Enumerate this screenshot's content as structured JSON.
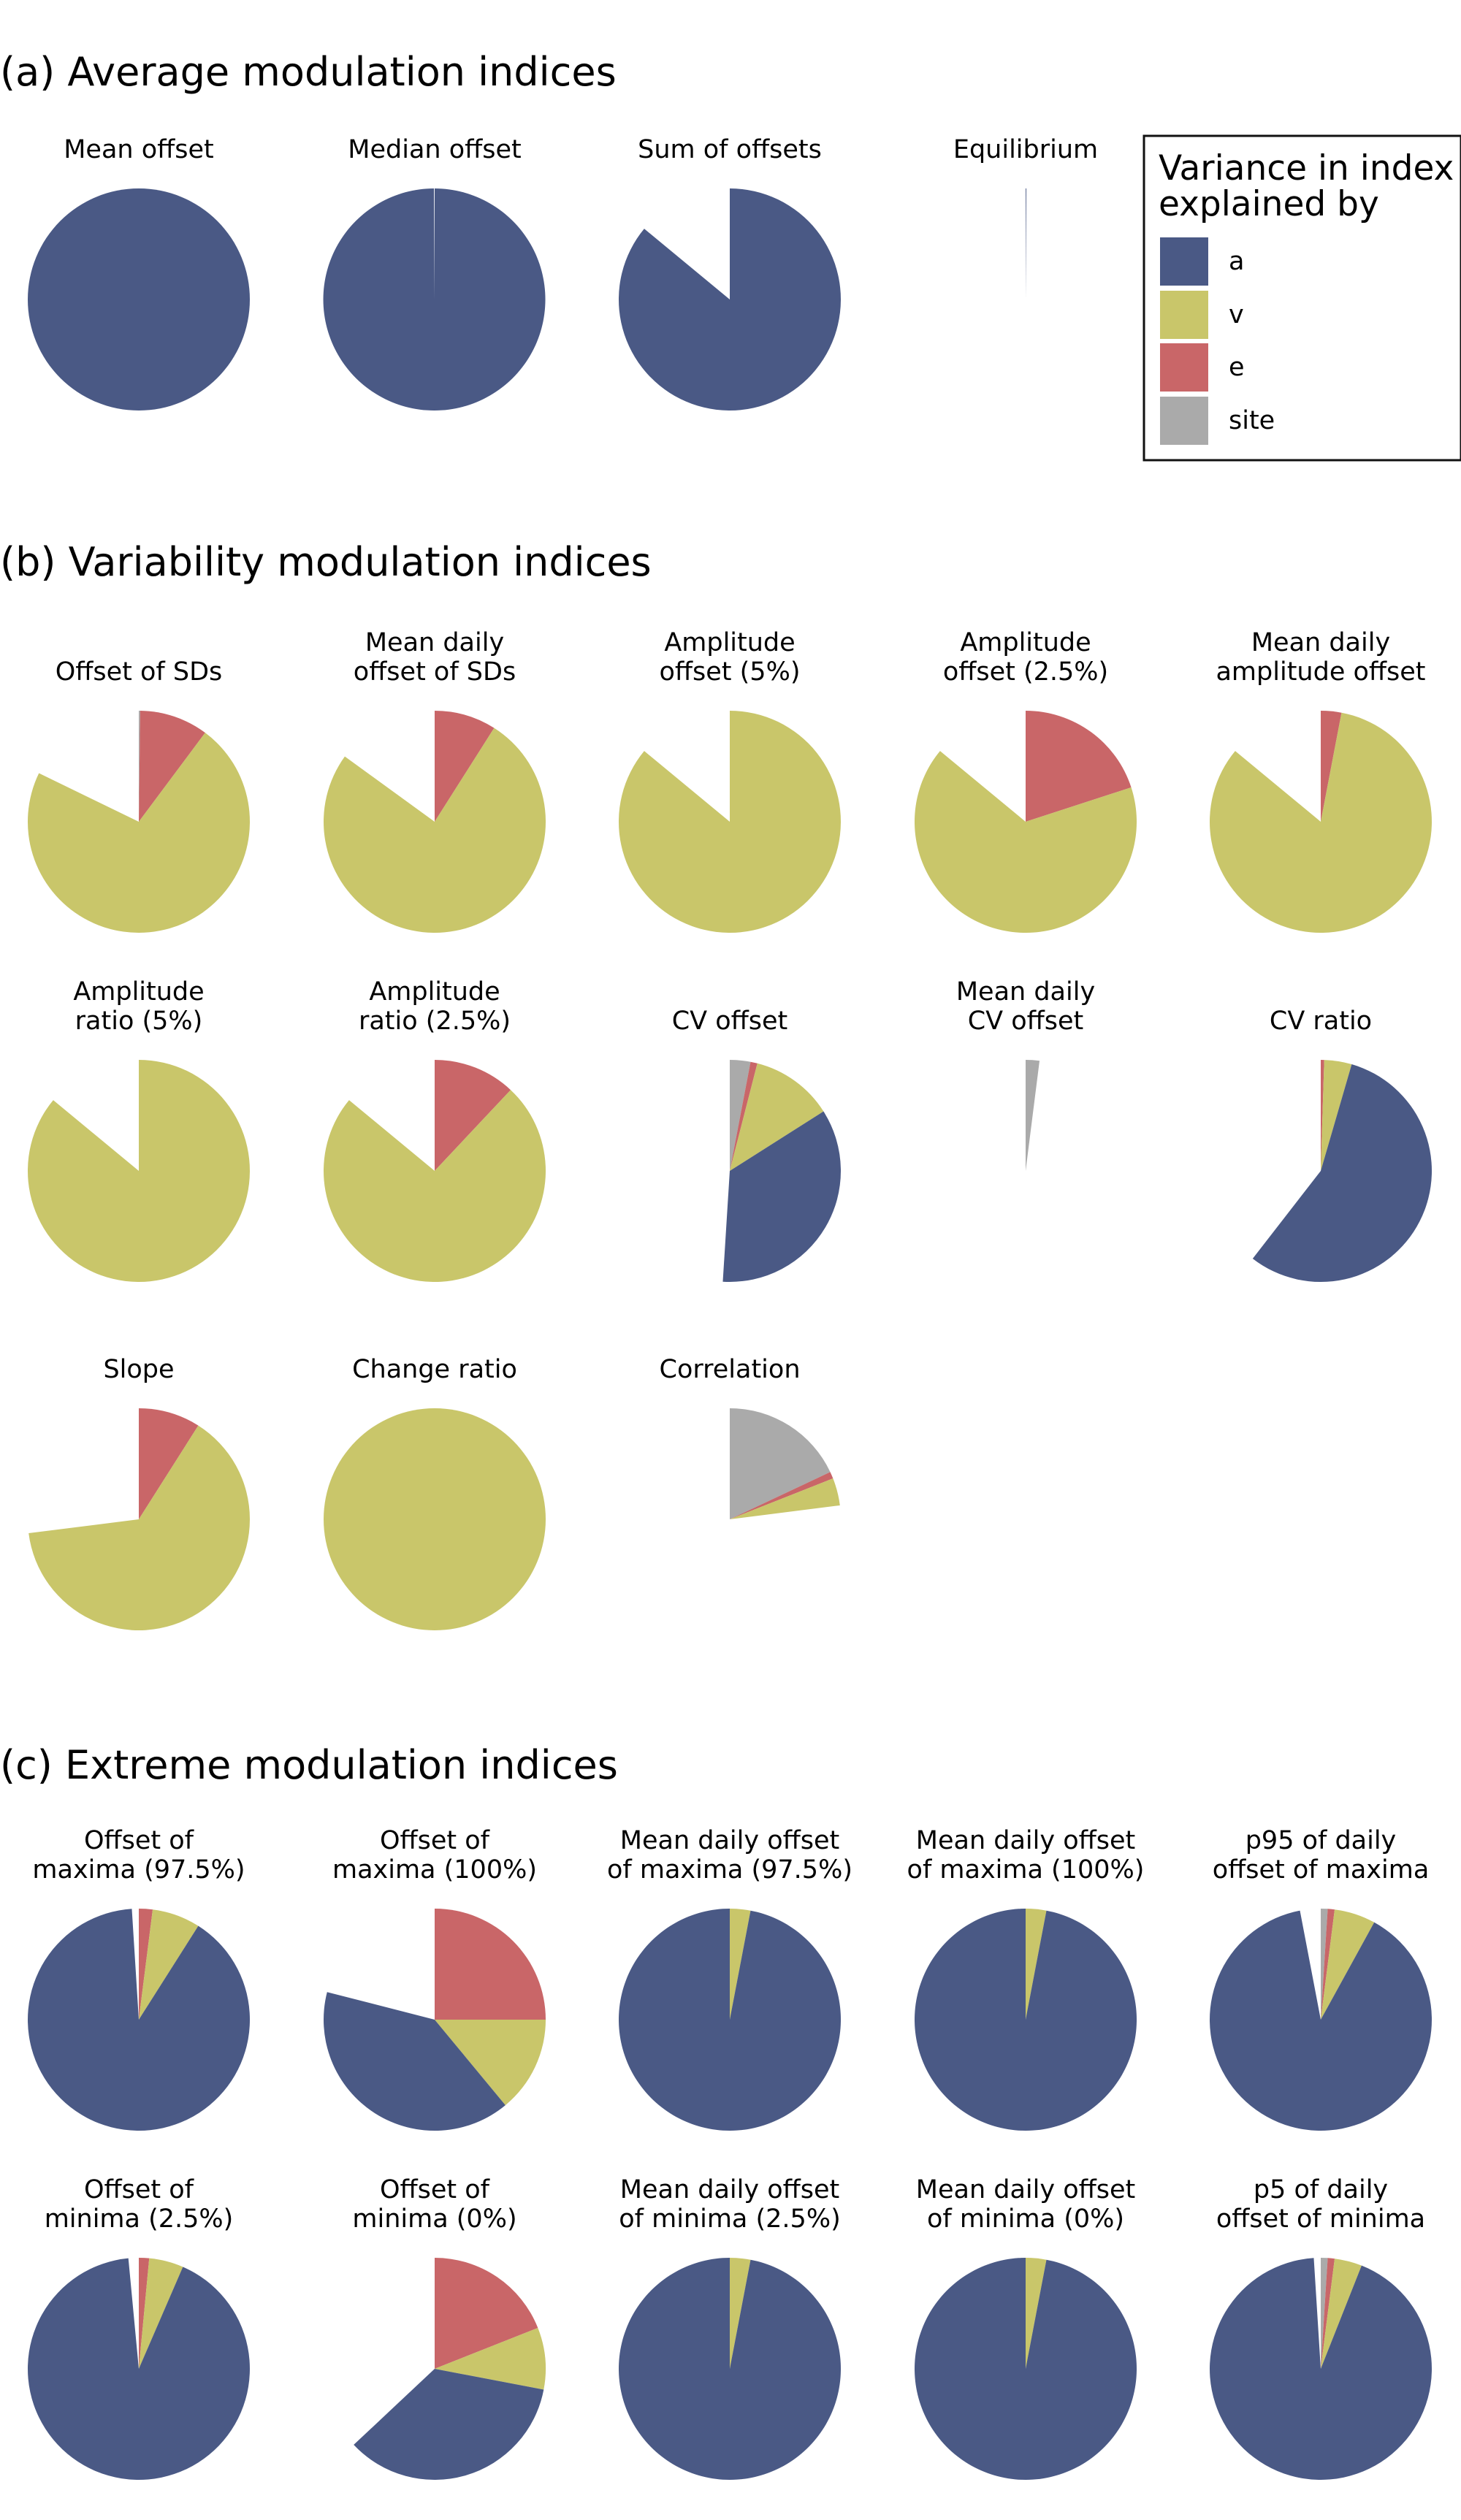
{
  "colors": {
    "a": "#4a5985",
    "v": "#c9c66a",
    "e": "#c96668",
    "site": "#aaaaaa"
  },
  "legend": {
    "title_line1": "Variance in index",
    "title_line2": "explained by",
    "items": [
      {
        "key": "a",
        "label": "a"
      },
      {
        "key": "v",
        "label": "v"
      },
      {
        "key": "e",
        "label": "e"
      },
      {
        "key": "site",
        "label": "site"
      }
    ]
  },
  "sections": [
    {
      "title": "(a) Average modulation indices",
      "rows": [
        [
          {
            "title": [
              "Mean offset"
            ],
            "slices": {
              "a": 1.0,
              "v": 0,
              "e": 0,
              "site": 0
            }
          },
          {
            "title": [
              "Median offset"
            ],
            "slices": {
              "a": 0.999,
              "v": 0,
              "e": 0,
              "site": 0
            }
          },
          {
            "title": [
              "Sum of offsets"
            ],
            "slices": {
              "a": 0.86,
              "v": 0,
              "e": 0,
              "site": 0
            }
          },
          {
            "title": [
              "Equilibrium"
            ],
            "slices": {
              "a": 0.001,
              "v": 0,
              "e": 0,
              "site": 0
            }
          }
        ]
      ]
    },
    {
      "title": "(b) Variability modulation indices",
      "rows": [
        [
          {
            "title": [
              "Offset of SDs"
            ],
            "slices": {
              "a": 0,
              "v": 0.72,
              "e": 0.1,
              "site": 0.002
            }
          },
          {
            "title": [
              "Mean daily",
              "offset of SDs"
            ],
            "slices": {
              "a": 0,
              "v": 0.76,
              "e": 0.09,
              "site": 0
            }
          },
          {
            "title": [
              "Amplitude",
              "offset (5%)"
            ],
            "slices": {
              "a": 0,
              "v": 0.86,
              "e": 0,
              "site": 0
            }
          },
          {
            "title": [
              "Amplitude",
              "offset (2.5%)"
            ],
            "slices": {
              "a": 0,
              "v": 0.66,
              "e": 0.2,
              "site": 0
            }
          },
          {
            "title": [
              "Mean daily",
              "amplitude offset"
            ],
            "slices": {
              "a": 0,
              "v": 0.83,
              "e": 0.03,
              "site": 0
            }
          }
        ],
        [
          {
            "title": [
              "Amplitude",
              "ratio (5%)"
            ],
            "slices": {
              "a": 0,
              "v": 0.86,
              "e": 0,
              "site": 0
            }
          },
          {
            "title": [
              "Amplitude",
              "ratio (2.5%)"
            ],
            "slices": {
              "a": 0,
              "v": 0.74,
              "e": 0.12,
              "site": 0
            }
          },
          {
            "title": [
              "CV offset"
            ],
            "slices": {
              "a": 0.35,
              "v": 0.12,
              "e": 0.01,
              "site": 0.03
            }
          },
          {
            "title": [
              "Mean daily",
              "CV offset"
            ],
            "slices": {
              "a": 0,
              "v": 0,
              "e": 0,
              "site": 0.02
            }
          },
          {
            "title": [
              "CV ratio"
            ],
            "slices": {
              "a": 0.56,
              "v": 0.04,
              "e": 0.005,
              "site": 0
            }
          }
        ],
        [
          {
            "title": [
              "Slope"
            ],
            "slices": {
              "a": 0,
              "v": 0.64,
              "e": 0.09,
              "site": 0
            }
          },
          {
            "title": [
              "Change ratio"
            ],
            "slices": {
              "a": 0,
              "v": 1.0,
              "e": 0,
              "site": 0
            }
          },
          {
            "title": [
              "Correlation"
            ],
            "slices": {
              "a": 0,
              "v": 0.04,
              "e": 0.01,
              "site": 0.18
            }
          }
        ]
      ]
    },
    {
      "title": "(c) Extreme modulation indices",
      "rows": [
        [
          {
            "title": [
              "Offset of",
              "maxima (97.5%)"
            ],
            "slices": {
              "a": 0.9,
              "v": 0.07,
              "e": 0.02,
              "site": 0
            }
          },
          {
            "title": [
              "Offset of",
              "maxima (100%)"
            ],
            "slices": {
              "a": 0.4,
              "v": 0.14,
              "e": 0.25,
              "site": 0
            }
          },
          {
            "title": [
              "Mean daily offset",
              "of maxima (97.5%)"
            ],
            "slices": {
              "a": 0.97,
              "v": 0.03,
              "e": 0,
              "site": 0
            }
          },
          {
            "title": [
              "Mean daily offset",
              "of maxima (100%)"
            ],
            "slices": {
              "a": 0.97,
              "v": 0.03,
              "e": 0,
              "site": 0
            }
          },
          {
            "title": [
              "p95 of daily",
              "offset of maxima"
            ],
            "slices": {
              "a": 0.89,
              "v": 0.06,
              "e": 0.01,
              "site": 0.01
            }
          }
        ],
        [
          {
            "title": [
              "Offset of",
              "minima (2.5%)"
            ],
            "slices": {
              "a": 0.92,
              "v": 0.05,
              "e": 0.015,
              "site": 0
            }
          },
          {
            "title": [
              "Offset of",
              "minima (0%)"
            ],
            "slices": {
              "a": 0.35,
              "v": 0.09,
              "e": 0.19,
              "site": 0
            }
          },
          {
            "title": [
              "Mean daily offset",
              "of minima (2.5%)"
            ],
            "slices": {
              "a": 0.97,
              "v": 0.03,
              "e": 0,
              "site": 0
            }
          },
          {
            "title": [
              "Mean daily offset",
              "of minima (0%)"
            ],
            "slices": {
              "a": 0.97,
              "v": 0.03,
              "e": 0,
              "site": 0
            }
          },
          {
            "title": [
              "p5 of daily",
              "offset of minima"
            ],
            "slices": {
              "a": 0.93,
              "v": 0.04,
              "e": 0.01,
              "site": 0.01
            }
          }
        ]
      ]
    }
  ],
  "chart_data": {
    "type": "pie",
    "note_order": "slices drawn clockwise from 12 o'clock in order site, e, v, a; values are fractions of variance explained (unexplained remainder left blank)"
  }
}
